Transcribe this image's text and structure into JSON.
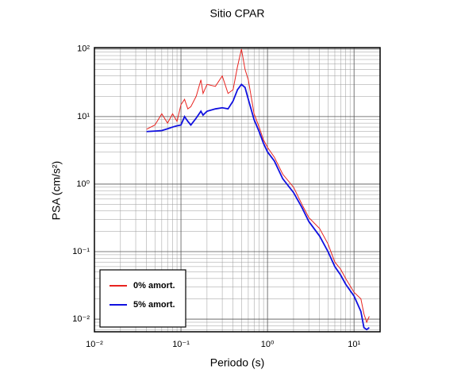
{
  "chart_data": {
    "type": "line",
    "title": "Sitio CPAR",
    "xlabel": "Periodo (s)",
    "ylabel": "PSA (cm/s²)",
    "xscale": "log",
    "yscale": "log",
    "grid": true,
    "minor_grid": true,
    "legend": "lower left",
    "xlim": [
      0.01,
      20
    ],
    "ylim": [
      0.0065,
      105
    ],
    "xticks": [
      {
        "value": 0.01,
        "label": "10⁻²"
      },
      {
        "value": 0.1,
        "label": "10⁻¹"
      },
      {
        "value": 1,
        "label": "10⁰"
      },
      {
        "value": 10,
        "label": "10¹"
      }
    ],
    "yticks": [
      {
        "value": 0.01,
        "label": "10⁻²"
      },
      {
        "value": 0.1,
        "label": "10⁻¹"
      },
      {
        "value": 1,
        "label": "10⁰"
      },
      {
        "value": 10,
        "label": "10¹"
      },
      {
        "value": 100,
        "label": "10²"
      }
    ],
    "x": [
      0.04,
      0.05,
      0.06,
      0.07,
      0.08,
      0.09,
      0.1,
      0.11,
      0.12,
      0.13,
      0.15,
      0.17,
      0.18,
      0.2,
      0.25,
      0.3,
      0.35,
      0.4,
      0.45,
      0.5,
      0.55,
      0.6,
      0.7,
      0.8,
      0.9,
      1.0,
      1.2,
      1.5,
      2,
      2.5,
      3,
      4,
      5,
      6,
      7,
      8,
      10,
      12,
      13,
      14,
      15
    ],
    "series": [
      {
        "name": "0% amort.",
        "color": "#e8231f",
        "width": 1,
        "values": [
          6.5,
          7.5,
          11,
          8,
          11,
          8.5,
          15,
          18,
          13,
          14,
          20,
          35,
          22,
          30,
          28,
          40,
          22,
          25,
          55,
          100,
          50,
          35,
          11,
          7,
          4.5,
          3.5,
          2.5,
          1.4,
          0.9,
          0.5,
          0.32,
          0.22,
          0.13,
          0.07,
          0.055,
          0.04,
          0.025,
          0.02,
          0.012,
          0.009,
          0.011
        ]
      },
      {
        "name": "5% amort.",
        "color": "#1010e0",
        "width": 1.8,
        "values": [
          6.0,
          6.1,
          6.2,
          6.6,
          7.0,
          7.3,
          7.5,
          10,
          8.5,
          7.5,
          9.5,
          12,
          10.5,
          12,
          13,
          13.5,
          13,
          17,
          25,
          30,
          27,
          18,
          9,
          6,
          4,
          3,
          2.2,
          1.2,
          0.75,
          0.45,
          0.28,
          0.17,
          0.1,
          0.06,
          0.045,
          0.033,
          0.022,
          0.013,
          0.0075,
          0.007,
          0.0075
        ]
      }
    ]
  }
}
